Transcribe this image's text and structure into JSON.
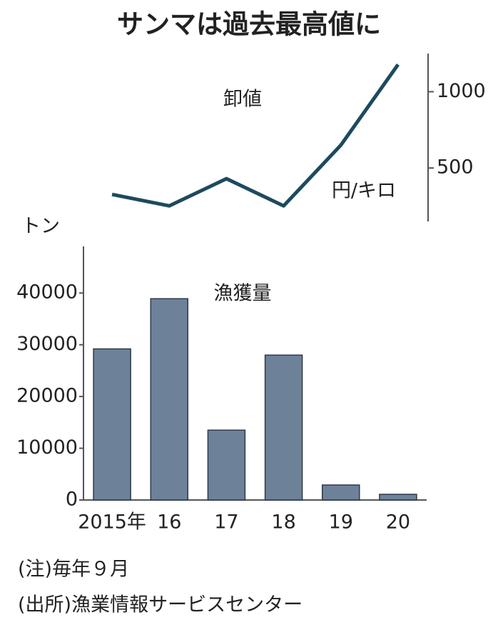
{
  "title": "サンマは過去最高値に",
  "notes": [
    "(注)毎年９月",
    "(出所)漁業情報サービスセンター"
  ],
  "chart_data": [
    {
      "type": "line",
      "label": "卸値",
      "unit": "円/キロ",
      "categories": [
        null,
        null,
        null,
        null,
        null,
        null
      ],
      "values": [
        327,
        252,
        430,
        252,
        650,
        1178
      ],
      "color": "#1d4a5e",
      "y2lim": [
        150,
        1250
      ],
      "y2ticks": [
        500,
        1000
      ]
    },
    {
      "type": "bar",
      "label": "漁獲量",
      "unit": "トン",
      "categories": [
        "2015年",
        "16",
        "17",
        "18",
        "19",
        "20"
      ],
      "values": [
        29200,
        38900,
        13500,
        28000,
        2900,
        1100
      ],
      "color": "#6d8299",
      "ylim": [
        0,
        49000
      ],
      "yticks": [
        0,
        10000,
        20000,
        30000,
        40000
      ]
    }
  ]
}
